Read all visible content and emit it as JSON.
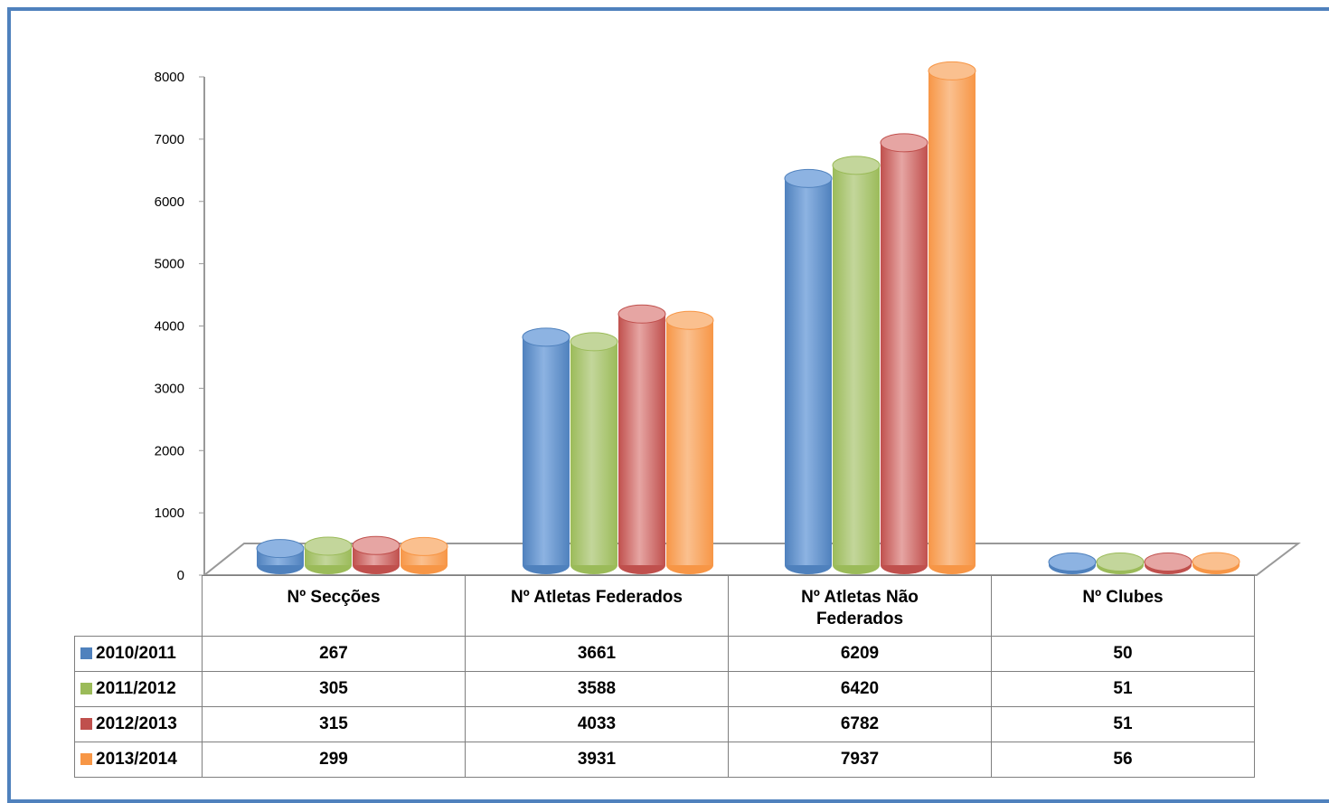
{
  "chart_data": {
    "type": "bar",
    "categories": [
      "Nº Secções",
      "Nº Atletas Federados",
      "Nº Atletas Não Federados",
      "Nº Clubes"
    ],
    "series": [
      {
        "name": "2010/2011",
        "values": [
          267,
          3661,
          6209,
          50
        ],
        "color": "#4f81bd"
      },
      {
        "name": "2011/2012",
        "values": [
          305,
          3588,
          6420,
          51
        ],
        "color": "#9bbb59"
      },
      {
        "name": "2012/2013",
        "values": [
          315,
          4033,
          6782,
          51
        ],
        "color": "#c0504d"
      },
      {
        "name": "2013/2014",
        "values": [
          299,
          3931,
          7937,
          56
        ],
        "color": "#f79646"
      }
    ],
    "ylim": [
      0,
      8000
    ],
    "yticks": [
      "0",
      "1000",
      "2000",
      "3000",
      "4000",
      "5000",
      "6000",
      "7000",
      "8000"
    ],
    "style": "3d-cylinder",
    "legend": "data-table"
  },
  "colors": {
    "frame": "#4f81bd",
    "series_light": [
      "#8db3e2",
      "#c3d69b",
      "#e6a5a3",
      "#fac08f"
    ]
  }
}
